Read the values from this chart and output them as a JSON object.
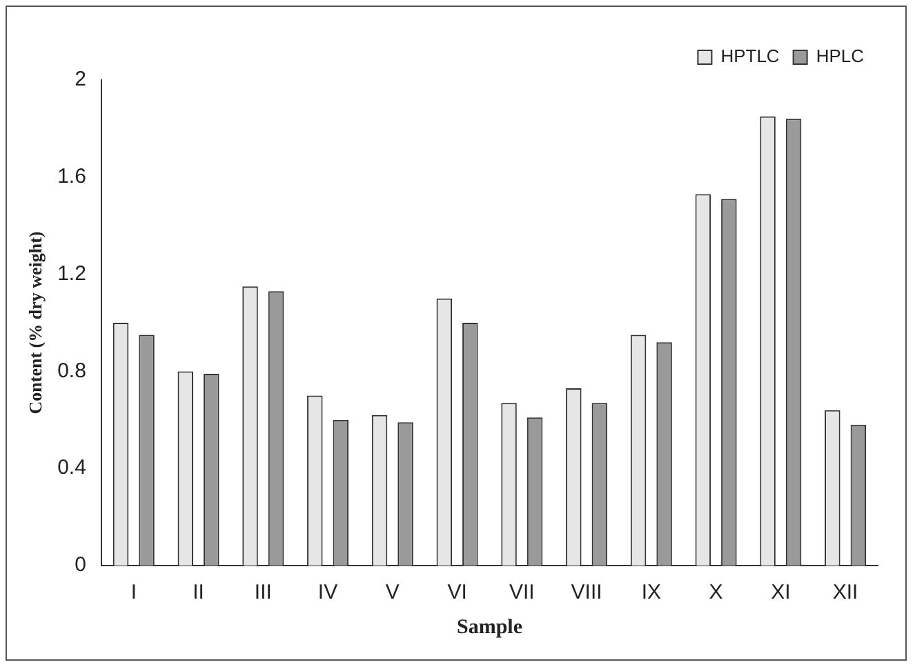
{
  "chart_data": {
    "type": "bar",
    "xlabel": "Sample",
    "ylabel": "Content (% dry weight)",
    "categories": [
      "I",
      "II",
      "III",
      "IV",
      "V",
      "VI",
      "VII",
      "VIII",
      "IX",
      "X",
      "XI",
      "XII"
    ],
    "series": [
      {
        "name": "HPTLC",
        "color": "#e6e6e6",
        "values": [
          1.0,
          0.8,
          1.15,
          0.7,
          0.62,
          1.1,
          0.67,
          0.73,
          0.95,
          1.53,
          1.85,
          0.64
        ]
      },
      {
        "name": "HPLC",
        "color": "#9a9a9a",
        "values": [
          0.95,
          0.79,
          1.13,
          0.6,
          0.59,
          1.0,
          0.61,
          0.67,
          0.92,
          1.51,
          1.84,
          0.58
        ]
      }
    ],
    "ylim": [
      0,
      2
    ],
    "yticks": [
      0,
      0.4,
      0.8,
      1.2,
      1.6,
      2
    ],
    "grid": false,
    "legend": "top right"
  }
}
